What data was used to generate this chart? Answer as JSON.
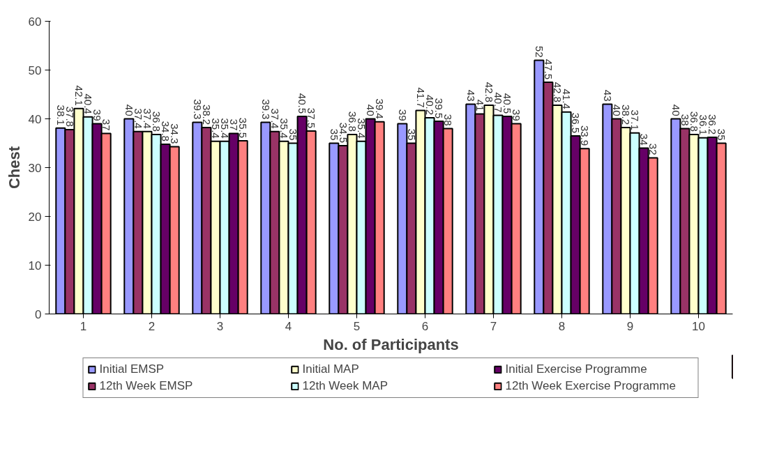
{
  "chart_data": {
    "type": "bar",
    "xlabel": "No. of Participants",
    "ylabel": "Chest",
    "categories": [
      "1",
      "2",
      "3",
      "4",
      "5",
      "6",
      "7",
      "8",
      "9",
      "10"
    ],
    "ylim": [
      0,
      60
    ],
    "yticks": [
      0,
      10,
      20,
      30,
      40,
      50,
      60
    ],
    "grid": false,
    "legend": "bottom",
    "data_labels": true,
    "series": [
      {
        "name": "Initial EMSP",
        "color": "#9999ff",
        "values": [
          38.1,
          40,
          39.3,
          39.3,
          35,
          39,
          43,
          52,
          43,
          40
        ]
      },
      {
        "name": "12th Week EMSP",
        "color": "#993366",
        "values": [
          37.8,
          37.4,
          38.2,
          37.4,
          34.5,
          35,
          41,
          47.5,
          40,
          38
        ]
      },
      {
        "name": "Initial MAP",
        "color": "#ffffcc",
        "values": [
          42.1,
          37.4,
          35.4,
          35.4,
          36.8,
          41.7,
          42.8,
          42.8,
          38.2,
          36.8
        ]
      },
      {
        "name": "12th Week MAP",
        "color": "#ccffff",
        "values": [
          40.4,
          36.8,
          35.4,
          35,
          35.4,
          40.2,
          40.7,
          41.4,
          37.1,
          36.1
        ]
      },
      {
        "name": "Initial Exercise Programme",
        "color": "#660066",
        "values": [
          39,
          34.8,
          37,
          40.5,
          40,
          39.5,
          40.5,
          36.5,
          34,
          36.2
        ]
      },
      {
        "name": "12th Week Exercise Programme",
        "color": "#ff8080",
        "values": [
          37,
          34.3,
          35.5,
          37.5,
          39.4,
          38,
          39,
          33.9,
          32,
          35
        ]
      }
    ]
  }
}
